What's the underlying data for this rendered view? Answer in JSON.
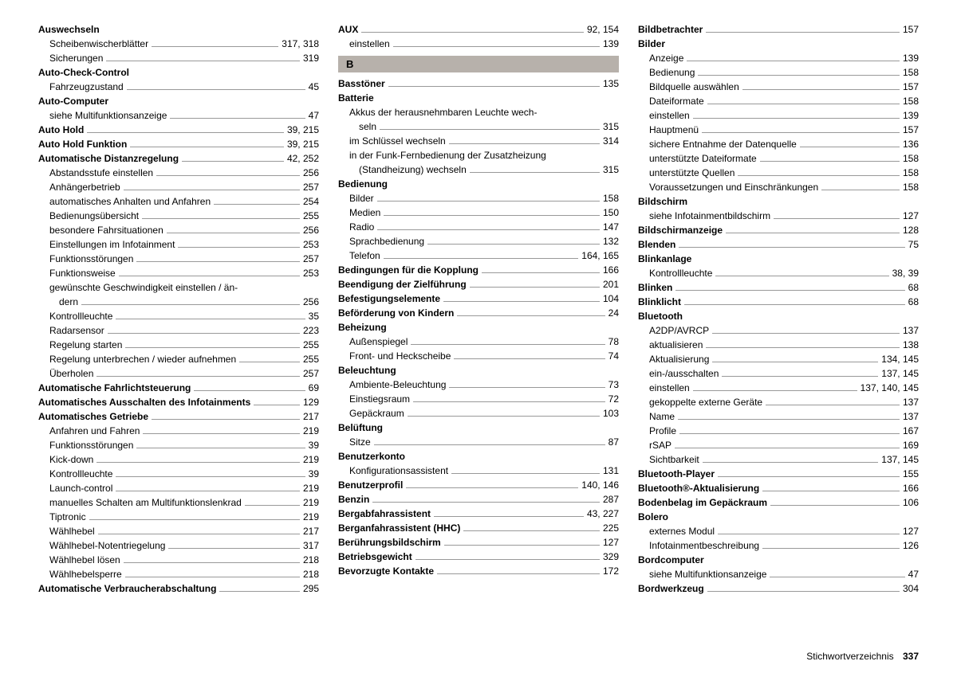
{
  "footer": {
    "label": "Stichwortverzeichnis",
    "page": "337"
  },
  "sectionB": "B",
  "col1": [
    {
      "t": "Auswechseln",
      "b": true
    },
    {
      "t": "Scheibenwischerblätter",
      "p": "317, 318",
      "s": true
    },
    {
      "t": "Sicherungen",
      "p": "319",
      "s": true
    },
    {
      "t": "Auto-Check-Control",
      "b": true
    },
    {
      "t": "Fahrzeugzustand",
      "p": "45",
      "s": true
    },
    {
      "t": "Auto-Computer",
      "b": true
    },
    {
      "t": "siehe Multifunktionsanzeige",
      "p": "47",
      "s": true
    },
    {
      "t": "Auto Hold",
      "p": "39, 215",
      "b": true
    },
    {
      "t": "Auto Hold Funktion",
      "p": "39, 215",
      "b": true
    },
    {
      "t": "Automatische Distanzregelung",
      "p": "42, 252",
      "b": true
    },
    {
      "t": "Abstandsstufe einstellen",
      "p": "256",
      "s": true
    },
    {
      "t": "Anhängerbetrieb",
      "p": "257",
      "s": true
    },
    {
      "t": "automatisches Anhalten und Anfahren",
      "p": "254",
      "s": true
    },
    {
      "t": "Bedienungsübersicht",
      "p": "255",
      "s": true
    },
    {
      "t": "besondere Fahrsituationen",
      "p": "256",
      "s": true
    },
    {
      "t": "Einstellungen im Infotainment",
      "p": "253",
      "s": true
    },
    {
      "t": "Funktionsstörungen",
      "p": "257",
      "s": true
    },
    {
      "t": "Funktionsweise",
      "p": "253",
      "s": true
    },
    {
      "t": "gewünschte Geschwindigkeit einstellen / än-",
      "s": true,
      "nop": true
    },
    {
      "t": "dern",
      "p": "256",
      "wrap": true
    },
    {
      "t": "Kontrollleuchte",
      "p": "35",
      "s": true
    },
    {
      "t": "Radarsensor",
      "p": "223",
      "s": true
    },
    {
      "t": "Regelung starten",
      "p": "255",
      "s": true
    },
    {
      "t": "Regelung unterbrechen / wieder aufnehmen",
      "p": "255",
      "s": true
    },
    {
      "t": "Überholen",
      "p": "257",
      "s": true
    },
    {
      "t": "Automatische Fahrlichtsteuerung",
      "p": "69",
      "b": true
    },
    {
      "t": "Automatisches Ausschalten des Infotainments",
      "p": "129",
      "b": true,
      "tight": true
    },
    {
      "t": "Automatisches Getriebe",
      "p": "217",
      "b": true
    },
    {
      "t": "Anfahren und Fahren",
      "p": "219",
      "s": true
    },
    {
      "t": "Funktionsstörungen",
      "p": "39",
      "s": true
    },
    {
      "t": "Kick-down",
      "p": "219",
      "s": true
    },
    {
      "t": "Kontrollleuchte",
      "p": "39",
      "s": true
    },
    {
      "t": "Launch-control",
      "p": "219",
      "s": true
    },
    {
      "t": "manuelles Schalten am Multifunktionslenkrad",
      "p": "219",
      "s": true,
      "tight": true
    },
    {
      "t": "Tiptronic",
      "p": "219",
      "s": true
    },
    {
      "t": "Wählhebel",
      "p": "217",
      "s": true
    },
    {
      "t": "Wählhebel-Notentriegelung",
      "p": "317",
      "s": true
    },
    {
      "t": "Wählhebel lösen",
      "p": "218",
      "s": true
    },
    {
      "t": "Wählhebelsperre",
      "p": "218",
      "s": true
    },
    {
      "t": "Automatische Verbraucherabschaltung",
      "p": "295",
      "b": true
    }
  ],
  "col2": [
    {
      "t": "AUX",
      "p": "92, 154",
      "b": true
    },
    {
      "t": "einstellen",
      "p": "139",
      "s": true
    },
    {
      "sect": true
    },
    {
      "t": "Basstöner",
      "p": "135",
      "b": true
    },
    {
      "t": "Batterie",
      "b": true
    },
    {
      "t": "Akkus der herausnehmbaren Leuchte wech-",
      "s": true,
      "nop": true
    },
    {
      "t": "seln",
      "p": "315",
      "wrap": true
    },
    {
      "t": "im Schlüssel wechseln",
      "p": "314",
      "s": true
    },
    {
      "t": "in der Funk-Fernbedienung der Zusatzheizung",
      "s": true,
      "nop": true
    },
    {
      "t": "(Standheizung) wechseln",
      "p": "315",
      "wrap": true
    },
    {
      "t": "Bedienung",
      "b": true
    },
    {
      "t": "Bilder",
      "p": "158",
      "s": true
    },
    {
      "t": "Medien",
      "p": "150",
      "s": true
    },
    {
      "t": "Radio",
      "p": "147",
      "s": true
    },
    {
      "t": "Sprachbedienung",
      "p": "132",
      "s": true
    },
    {
      "t": "Telefon",
      "p": "164, 165",
      "s": true
    },
    {
      "t": "Bedingungen für die Kopplung",
      "p": "166",
      "b": true
    },
    {
      "t": "Beendigung der Zielführung",
      "p": "201",
      "b": true
    },
    {
      "t": "Befestigungselemente",
      "p": "104",
      "b": true
    },
    {
      "t": "Beförderung von Kindern",
      "p": "24",
      "b": true
    },
    {
      "t": "Beheizung",
      "b": true
    },
    {
      "t": "Außenspiegel",
      "p": "78",
      "s": true
    },
    {
      "t": "Front- und Heckscheibe",
      "p": "74",
      "s": true
    },
    {
      "t": "Beleuchtung",
      "b": true
    },
    {
      "t": "Ambiente-Beleuchtung",
      "p": "73",
      "s": true
    },
    {
      "t": "Einstiegsraum",
      "p": "72",
      "s": true
    },
    {
      "t": "Gepäckraum",
      "p": "103",
      "s": true
    },
    {
      "t": "Belüftung",
      "b": true
    },
    {
      "t": "Sitze",
      "p": "87",
      "s": true
    },
    {
      "t": "Benutzerkonto",
      "b": true
    },
    {
      "t": "Konfigurationsassistent",
      "p": "131",
      "s": true
    },
    {
      "t": "Benutzerprofil",
      "p": "140, 146",
      "b": true
    },
    {
      "t": "Benzin",
      "p": "287",
      "b": true
    },
    {
      "t": "Bergabfahrassistent",
      "p": "43, 227",
      "b": true
    },
    {
      "t": "Berganfahrassistent (HHC)",
      "p": "225",
      "b": true
    },
    {
      "t": "Berührungsbildschirm",
      "p": "127",
      "b": true
    },
    {
      "t": "Betriebsgewicht",
      "p": "329",
      "b": true
    },
    {
      "t": "Bevorzugte Kontakte",
      "p": "172",
      "b": true
    }
  ],
  "col3": [
    {
      "t": "Bildbetrachter",
      "p": "157",
      "b": true
    },
    {
      "t": "Bilder",
      "b": true
    },
    {
      "t": "Anzeige",
      "p": "139",
      "s": true
    },
    {
      "t": "Bedienung",
      "p": "158",
      "s": true
    },
    {
      "t": "Bildquelle auswählen",
      "p": "157",
      "s": true
    },
    {
      "t": "Dateiformate",
      "p": "158",
      "s": true
    },
    {
      "t": "einstellen",
      "p": "139",
      "s": true
    },
    {
      "t": "Hauptmenü",
      "p": "157",
      "s": true
    },
    {
      "t": "sichere Entnahme der Datenquelle",
      "p": "136",
      "s": true
    },
    {
      "t": "unterstützte Dateiformate",
      "p": "158",
      "s": true
    },
    {
      "t": "unterstützte Quellen",
      "p": "158",
      "s": true
    },
    {
      "t": "Voraussetzungen und Einschränkungen",
      "p": "158",
      "s": true
    },
    {
      "t": "Bildschirm",
      "b": true
    },
    {
      "t": "siehe Infotainmentbildschirm",
      "p": "127",
      "s": true
    },
    {
      "t": "Bildschirmanzeige",
      "p": "128",
      "b": true
    },
    {
      "t": "Blenden",
      "p": "75",
      "b": true
    },
    {
      "t": "Blinkanlage",
      "b": true
    },
    {
      "t": "Kontrollleuchte",
      "p": "38, 39",
      "s": true
    },
    {
      "t": "Blinken",
      "p": "68",
      "b": true
    },
    {
      "t": "Blinklicht",
      "p": "68",
      "b": true
    },
    {
      "t": "Bluetooth",
      "b": true
    },
    {
      "t": "A2DP/AVRCP",
      "p": "137",
      "s": true
    },
    {
      "t": "aktualisieren",
      "p": "138",
      "s": true
    },
    {
      "t": "Aktualisierung",
      "p": "134, 145",
      "s": true
    },
    {
      "t": "ein-/ausschalten",
      "p": "137, 145",
      "s": true
    },
    {
      "t": "einstellen",
      "p": "137, 140, 145",
      "s": true
    },
    {
      "t": "gekoppelte externe Geräte",
      "p": "137",
      "s": true
    },
    {
      "t": "Name",
      "p": "137",
      "s": true
    },
    {
      "t": "Profile",
      "p": "167",
      "s": true
    },
    {
      "t": "rSAP",
      "p": "169",
      "s": true
    },
    {
      "t": "Sichtbarkeit",
      "p": "137, 145",
      "s": true
    },
    {
      "t": "Bluetooth-Player",
      "p": "155",
      "b": true
    },
    {
      "t": "Bluetooth®-Aktualisierung",
      "p": "166",
      "b": true
    },
    {
      "t": "Bodenbelag im Gepäckraum",
      "p": "106",
      "b": true
    },
    {
      "t": "Bolero",
      "b": true
    },
    {
      "t": "externes Modul",
      "p": "127",
      "s": true
    },
    {
      "t": "Infotainmentbeschreibung",
      "p": "126",
      "s": true
    },
    {
      "t": "Bordcomputer",
      "b": true
    },
    {
      "t": "siehe Multifunktionsanzeige",
      "p": "47",
      "s": true
    },
    {
      "t": "Bordwerkzeug",
      "p": "304",
      "b": true
    }
  ]
}
